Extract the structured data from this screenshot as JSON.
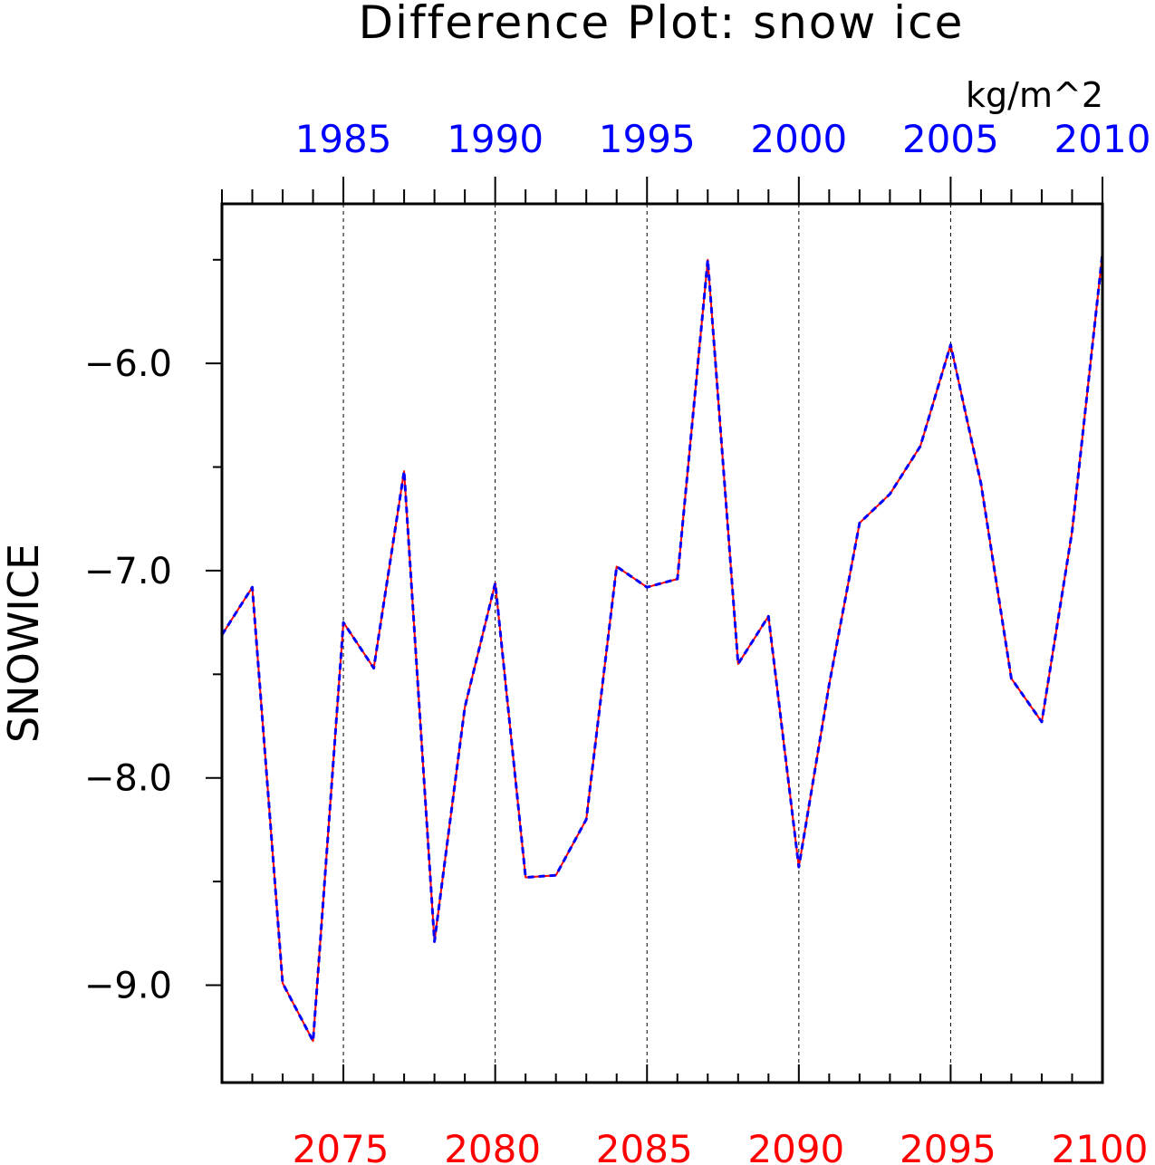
{
  "chart_data": {
    "type": "line",
    "title": "Difference Plot: snow ice",
    "units": "kg/m^2",
    "ylabel": "SNOWICE",
    "ylim": [
      -9.47,
      -5.23
    ],
    "yticks": [
      -6.0,
      -7.0,
      -8.0,
      -9.0
    ],
    "ytick_labels": [
      "−6.0",
      "−7.0",
      "−8.0",
      "−9.0"
    ],
    "x_bottom": {
      "range": [
        2071,
        2100
      ],
      "ticks": [
        2075,
        2080,
        2085,
        2090,
        2095,
        2100
      ],
      "labels": [
        "2075",
        "2080",
        "2085",
        "2090",
        "2095",
        "2100"
      ],
      "color": "#ff0000"
    },
    "x_top": {
      "range": [
        1981,
        2010
      ],
      "ticks": [
        1985,
        1990,
        1995,
        2000,
        2005,
        2010
      ],
      "labels": [
        "1985",
        "1990",
        "1995",
        "2000",
        "2005",
        "2010"
      ],
      "color": "#0000ff"
    },
    "vertical_gridlines": [
      2075,
      2080,
      2085,
      2090,
      2095
    ],
    "x": [
      2071,
      2072,
      2073,
      2074,
      2075,
      2076,
      2077,
      2078,
      2079,
      2080,
      2081,
      2082,
      2083,
      2084,
      2085,
      2086,
      2087,
      2088,
      2089,
      2090,
      2091,
      2092,
      2093,
      2094,
      2095,
      2096,
      2097,
      2098,
      2099,
      2100
    ],
    "series": [
      {
        "color": "#ff0000",
        "dash": "solid",
        "values": [
          -7.31,
          -7.08,
          -8.99,
          -9.27,
          -7.25,
          -7.47,
          -6.52,
          -8.79,
          -7.66,
          -7.06,
          -8.48,
          -8.47,
          -8.2,
          -6.98,
          -7.08,
          -7.04,
          -5.5,
          -7.45,
          -7.22,
          -8.43,
          -7.55,
          -6.77,
          -6.63,
          -6.4,
          -5.91,
          -6.58,
          -7.52,
          -7.73,
          -6.81,
          -5.47
        ]
      },
      {
        "color": "#0000ff",
        "dash": "dashed",
        "values": [
          -7.31,
          -7.08,
          -8.99,
          -9.27,
          -7.25,
          -7.47,
          -6.52,
          -8.79,
          -7.66,
          -7.06,
          -8.48,
          -8.47,
          -8.2,
          -6.98,
          -7.08,
          -7.04,
          -5.5,
          -7.45,
          -7.22,
          -8.43,
          -7.55,
          -6.77,
          -6.63,
          -6.4,
          -5.91,
          -6.58,
          -7.52,
          -7.73,
          -6.81,
          -5.47
        ]
      }
    ]
  }
}
